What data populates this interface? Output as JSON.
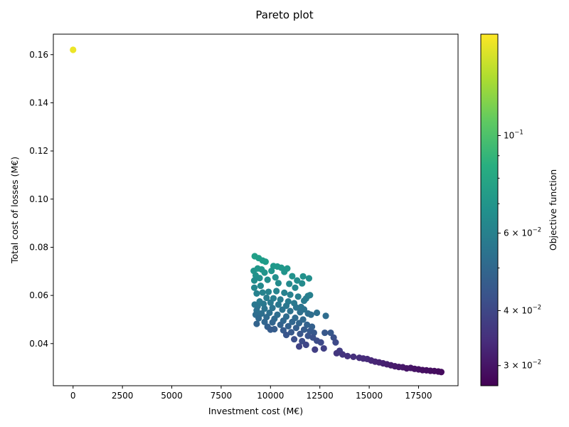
{
  "chart_data": {
    "type": "scatter",
    "title": "Pareto plot",
    "xlabel": "Investment cost (M€)",
    "ylabel": "Total cost of losses (M€)",
    "xlim": [
      -1000,
      19500
    ],
    "ylim": [
      0.0225,
      0.1685
    ],
    "xticks": [
      0,
      2500,
      5000,
      7500,
      10000,
      12500,
      15000,
      17500
    ],
    "xtick_labels": [
      "0",
      "2500",
      "5000",
      "7500",
      "10000",
      "12500",
      "15000",
      "17500"
    ],
    "yticks": [
      0.04,
      0.06,
      0.08,
      0.1,
      0.12,
      0.14,
      0.16
    ],
    "ytick_labels": [
      "0.04",
      "0.06",
      "0.08",
      "0.10",
      "0.12",
      "0.14",
      "0.16"
    ],
    "grid": false,
    "colormap": "viridis",
    "colorbar": {
      "label": "Objective function",
      "scale": "log",
      "range": [
        0.027,
        0.17
      ],
      "ticks": [
        0.03,
        0.04,
        0.06,
        0.1
      ],
      "tick_labels": [
        {
          "base": "3 × 10",
          "exp": "−2"
        },
        {
          "base": "4 × 10",
          "exp": "−2"
        },
        {
          "base": "6 × 10",
          "exp": "−2"
        },
        {
          "base": "10",
          "exp": "−1"
        }
      ],
      "minor_ticks": [
        0.05,
        0.07,
        0.08,
        0.09
      ]
    },
    "series": [
      {
        "points": [
          [
            0,
            0.162,
            0.162
          ],
          [
            9200,
            0.0763,
            0.0765
          ],
          [
            9400,
            0.0755,
            0.0757
          ],
          [
            9600,
            0.0745,
            0.0747
          ],
          [
            9750,
            0.074,
            0.0742
          ],
          [
            9150,
            0.0702,
            0.0704
          ],
          [
            9350,
            0.0712,
            0.0714
          ],
          [
            9550,
            0.0708,
            0.071
          ],
          [
            10150,
            0.0722,
            0.0724
          ],
          [
            10350,
            0.072,
            0.0722
          ],
          [
            10550,
            0.0715,
            0.0717
          ],
          [
            10850,
            0.0712,
            0.0714
          ],
          [
            9250,
            0.0683,
            0.0685
          ],
          [
            9700,
            0.0695,
            0.0697
          ],
          [
            10050,
            0.0702,
            0.0704
          ],
          [
            10700,
            0.0698,
            0.07
          ],
          [
            11100,
            0.068,
            0.0682
          ],
          [
            11650,
            0.0679,
            0.0681
          ],
          [
            11950,
            0.0671,
            0.0673
          ],
          [
            9180,
            0.0662,
            0.0664
          ],
          [
            9450,
            0.0672,
            0.0674
          ],
          [
            9850,
            0.0665,
            0.0667
          ],
          [
            10250,
            0.0675,
            0.0677
          ],
          [
            11350,
            0.0662,
            0.0664
          ],
          [
            11600,
            0.065,
            0.0652
          ],
          [
            9180,
            0.0632,
            0.0634
          ],
          [
            9500,
            0.064,
            0.0642
          ],
          [
            10400,
            0.0651,
            0.0653
          ],
          [
            10950,
            0.0648,
            0.065
          ],
          [
            11250,
            0.0632,
            0.0634
          ],
          [
            11900,
            0.0598,
            0.06
          ],
          [
            12000,
            0.0601,
            0.0603
          ],
          [
            11800,
            0.0587,
            0.0589
          ],
          [
            11700,
            0.0578,
            0.058
          ],
          [
            9300,
            0.0608,
            0.061
          ],
          [
            9600,
            0.0612,
            0.0614
          ],
          [
            9900,
            0.0615,
            0.0617
          ],
          [
            10300,
            0.0618,
            0.062
          ],
          [
            10700,
            0.0611,
            0.0613
          ],
          [
            11000,
            0.0603,
            0.0605
          ],
          [
            11400,
            0.0595,
            0.0597
          ],
          [
            9200,
            0.0562,
            0.0564
          ],
          [
            9450,
            0.0575,
            0.0577
          ],
          [
            9800,
            0.059,
            0.0592
          ],
          [
            10150,
            0.0588,
            0.059
          ],
          [
            10500,
            0.0583,
            0.0585
          ],
          [
            10900,
            0.0575,
            0.0577
          ],
          [
            11200,
            0.0568,
            0.057
          ],
          [
            11550,
            0.0552,
            0.0554
          ],
          [
            9350,
            0.0555,
            0.0557
          ],
          [
            9650,
            0.0565,
            0.0567
          ],
          [
            10000,
            0.057,
            0.0572
          ],
          [
            10400,
            0.0562,
            0.0564
          ],
          [
            10800,
            0.0557,
            0.0559
          ],
          [
            11300,
            0.055,
            0.0552
          ],
          [
            11700,
            0.0542,
            0.0544
          ],
          [
            9300,
            0.0538,
            0.054
          ],
          [
            9700,
            0.0545,
            0.0547
          ],
          [
            10100,
            0.0548,
            0.055
          ],
          [
            10600,
            0.0541,
            0.0543
          ],
          [
            11000,
            0.0535,
            0.0537
          ],
          [
            11500,
            0.053,
            0.0532
          ],
          [
            11900,
            0.0525,
            0.0527
          ],
          [
            12050,
            0.052,
            0.0522
          ],
          [
            12350,
            0.0528,
            0.053
          ],
          [
            12800,
            0.0515,
            0.0517
          ],
          [
            9250,
            0.052,
            0.0522
          ],
          [
            9550,
            0.0525,
            0.0527
          ],
          [
            9950,
            0.0528,
            0.053
          ],
          [
            10350,
            0.052,
            0.0522
          ],
          [
            10800,
            0.0512,
            0.0514
          ],
          [
            11250,
            0.0507,
            0.0509
          ],
          [
            11650,
            0.05,
            0.0502
          ],
          [
            9400,
            0.0505,
            0.0507
          ],
          [
            9800,
            0.051,
            0.0512
          ],
          [
            10200,
            0.0503,
            0.0505
          ],
          [
            10650,
            0.0495,
            0.0497
          ],
          [
            11100,
            0.049,
            0.0492
          ],
          [
            11450,
            0.0485,
            0.0487
          ],
          [
            11850,
            0.0478,
            0.048
          ],
          [
            12100,
            0.047,
            0.0472
          ],
          [
            9300,
            0.0482,
            0.0484
          ],
          [
            9700,
            0.049,
            0.0492
          ],
          [
            10100,
            0.0488,
            0.049
          ],
          [
            10500,
            0.0478,
            0.048
          ],
          [
            10900,
            0.0472,
            0.0474
          ],
          [
            11300,
            0.0465,
            0.0467
          ],
          [
            11700,
            0.0458,
            0.046
          ],
          [
            12000,
            0.0452,
            0.0454
          ],
          [
            12200,
            0.0445,
            0.0447
          ],
          [
            9850,
            0.047,
            0.0472
          ],
          [
            10200,
            0.046,
            0.0462
          ],
          [
            10650,
            0.0455,
            0.0457
          ],
          [
            11050,
            0.0447,
            0.0449
          ],
          [
            11500,
            0.044,
            0.0442
          ],
          [
            11900,
            0.0432,
            0.0434
          ],
          [
            12150,
            0.0425,
            0.0427
          ],
          [
            10000,
            0.0458,
            0.046
          ],
          [
            10800,
            0.0436,
            0.0438
          ],
          [
            11200,
            0.0418,
            0.042
          ],
          [
            11600,
            0.041,
            0.0412
          ],
          [
            11800,
            0.0395,
            0.0397
          ],
          [
            11450,
            0.0388,
            0.039
          ],
          [
            12350,
            0.0412,
            0.0414
          ],
          [
            12550,
            0.0405,
            0.0407
          ],
          [
            12250,
            0.0375,
            0.0377
          ],
          [
            12700,
            0.038,
            0.0382
          ],
          [
            12750,
            0.0445,
            0.0447
          ],
          [
            13050,
            0.0445,
            0.0447
          ],
          [
            13200,
            0.0425,
            0.0427
          ],
          [
            13300,
            0.0405,
            0.0407
          ],
          [
            13500,
            0.037,
            0.0372
          ],
          [
            13350,
            0.036,
            0.0362
          ],
          [
            13650,
            0.0355,
            0.0357
          ],
          [
            13900,
            0.0348,
            0.035
          ],
          [
            14200,
            0.0345,
            0.0347
          ],
          [
            14500,
            0.0341,
            0.0343
          ],
          [
            14700,
            0.0338,
            0.034
          ],
          [
            14900,
            0.0336,
            0.0338
          ],
          [
            15100,
            0.033,
            0.0332
          ],
          [
            15300,
            0.0325,
            0.0327
          ],
          [
            15500,
            0.0322,
            0.0324
          ],
          [
            15700,
            0.0318,
            0.032
          ],
          [
            15900,
            0.0314,
            0.0316
          ],
          [
            16100,
            0.031,
            0.0312
          ],
          [
            16300,
            0.0306,
            0.0308
          ],
          [
            16500,
            0.0303,
            0.0305
          ],
          [
            16700,
            0.0302,
            0.0304
          ],
          [
            16900,
            0.0297,
            0.0299
          ],
          [
            17100,
            0.0299,
            0.0301
          ],
          [
            17300,
            0.0295,
            0.0297
          ],
          [
            17500,
            0.0293,
            0.0295
          ],
          [
            17700,
            0.029,
            0.0292
          ],
          [
            17900,
            0.0289,
            0.0291
          ],
          [
            18100,
            0.0287,
            0.0289
          ],
          [
            18300,
            0.0286,
            0.0288
          ],
          [
            18500,
            0.0284,
            0.0286
          ],
          [
            18650,
            0.0282,
            0.0284
          ]
        ]
      }
    ]
  }
}
